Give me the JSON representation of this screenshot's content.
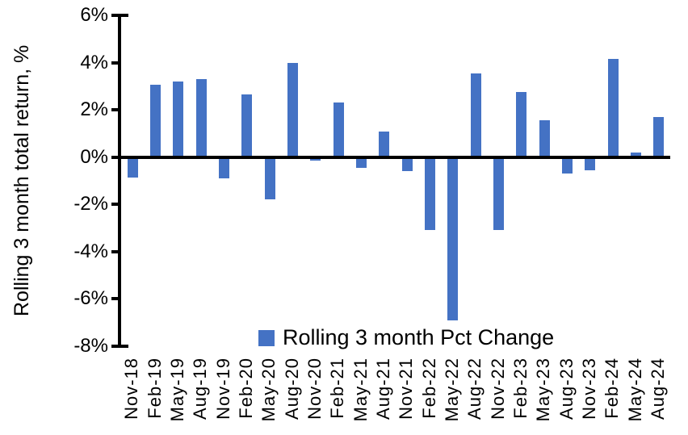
{
  "chart_data": {
    "type": "bar",
    "title": "",
    "xlabel": "",
    "ylabel": "Rolling 3 month total return, %",
    "categories": [
      "Nov-18",
      "Feb-19",
      "May-19",
      "Aug-19",
      "Nov-19",
      "Feb-20",
      "May-20",
      "Aug-20",
      "Nov-20",
      "Feb-21",
      "May-21",
      "Aug-21",
      "Nov-21",
      "Feb-22",
      "May-22",
      "Aug-22",
      "Nov-22",
      "Feb-23",
      "May-23",
      "Aug-23",
      "Nov-23",
      "Feb-24",
      "May-24",
      "Aug-24"
    ],
    "values": [
      -0.85,
      3.05,
      3.2,
      3.3,
      -0.9,
      2.65,
      -1.8,
      4.0,
      -0.15,
      2.3,
      -0.45,
      1.1,
      -0.6,
      -3.1,
      -6.9,
      3.55,
      -3.1,
      2.75,
      1.55,
      -0.7,
      -0.55,
      4.15,
      0.2,
      1.7
    ],
    "value_unit": "%",
    "ylim": [
      -8,
      6
    ],
    "yticks": [
      6,
      4,
      2,
      0,
      -2,
      -4,
      -6,
      -8
    ],
    "ytick_labels": [
      "6%",
      "4%",
      "2%",
      "0%",
      "-2%",
      "-4%",
      "-6%",
      "-8%"
    ],
    "grid": false,
    "legend": {
      "label": "Rolling 3 month Pct Change",
      "position": "bottom-center"
    },
    "colors": {
      "bar": "#4472C4",
      "axis": "#000000",
      "text": "#000000",
      "background": "#FFFFFF"
    }
  }
}
